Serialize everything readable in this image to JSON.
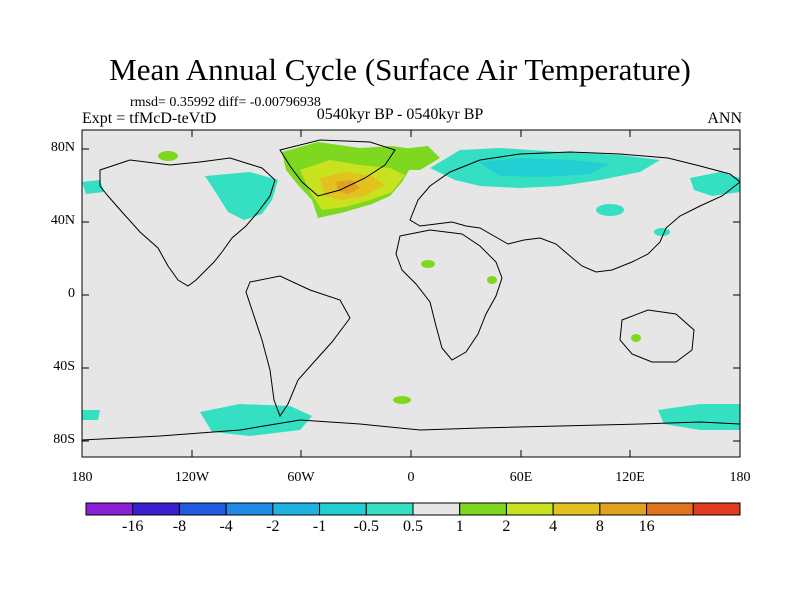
{
  "title": "Mean Annual Cycle (Surface Air Temperature)",
  "stats_line": "rmsd= 0.35992 diff= -0.00796938",
  "experiment": "Expt = tfMcD-teVtD",
  "period": "0540kyr BP - 0540kyr BP",
  "season": "ANN",
  "lat_ticks": [
    "80N",
    "40N",
    "0",
    "40S",
    "80S"
  ],
  "lon_ticks": [
    "180",
    "120W",
    "60W",
    "0",
    "60E",
    "120E",
    "180"
  ],
  "colorbar": {
    "labels": [
      "-16",
      "-8",
      "-4",
      "-2",
      "-1",
      "-0.5",
      "0.5",
      "1",
      "2",
      "4",
      "8",
      "16"
    ],
    "colors": [
      "#8a1fd6",
      "#3a1fd0",
      "#1f5ae0",
      "#1f8ae6",
      "#22b2e2",
      "#22cfd2",
      "#34dfc2",
      "#e6e6e6",
      "#7ed81f",
      "#c9e21f",
      "#e2c21f",
      "#e2a21f",
      "#e2731f",
      "#e23a1f"
    ]
  },
  "chart_data": {
    "type": "map",
    "projection": "cylindrical-equidistant",
    "lon_range": [
      -180,
      180
    ],
    "lat_range": [
      -90,
      90
    ],
    "variable": "Surface Air Temperature difference",
    "features": [
      {
        "region": "Greenland / North Atlantic",
        "class": "1 to 4 (max ~4-8)"
      },
      {
        "region": "Northern Eurasia",
        "class": "-1 to -0.5"
      },
      {
        "region": "Eastern North America / Labrador",
        "class": "-1 to -0.5"
      },
      {
        "region": "Far East Russia / Alaska",
        "class": "-1 to -0.5"
      },
      {
        "region": "Southern Ocean (Antarctic coast)",
        "class": "-1 to -0.5"
      }
    ]
  }
}
